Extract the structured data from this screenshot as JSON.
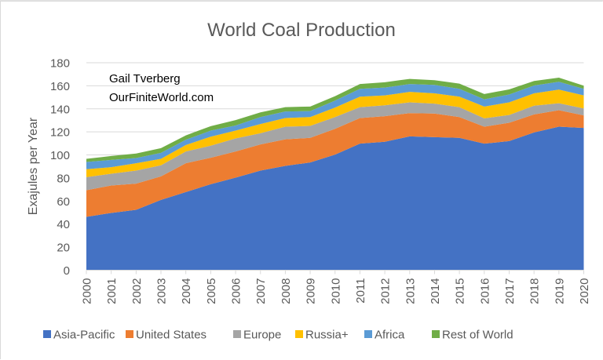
{
  "chart_data": {
    "type": "area",
    "stacked": true,
    "title": "World Coal Production",
    "xlabel": "",
    "ylabel": "Exajules per Year",
    "ylim": [
      0,
      180
    ],
    "yticks": [
      0,
      20,
      40,
      60,
      80,
      100,
      120,
      140,
      160,
      180
    ],
    "grid": true,
    "legend_position": "bottom",
    "annotations": [
      "Gail Tverberg",
      "OurFiniteWorld.com"
    ],
    "categories": [
      "2000",
      "2001",
      "2002",
      "2003",
      "2004",
      "2005",
      "2006",
      "2007",
      "2008",
      "2009",
      "2010",
      "2011",
      "2012",
      "2013",
      "2014",
      "2015",
      "2016",
      "2017",
      "2018",
      "2019",
      "2020"
    ],
    "series": [
      {
        "name": "Asia-Pacific",
        "color": "#4472C4",
        "values": [
          46.3,
          49.7,
          52.4,
          61.0,
          67.8,
          74.6,
          80.3,
          86.4,
          90.5,
          93.5,
          100.3,
          109.8,
          111.4,
          116.1,
          115.4,
          114.8,
          109.8,
          112.0,
          119.5,
          124.5,
          123.4
        ]
      },
      {
        "name": "United States",
        "color": "#ED7D31",
        "values": [
          23.1,
          23.8,
          22.7,
          20.4,
          25.0,
          23.0,
          22.7,
          22.7,
          23.1,
          21.3,
          22.4,
          22.2,
          22.2,
          20.2,
          20.5,
          18.1,
          14.7,
          15.9,
          15.7,
          14.3,
          10.9
        ]
      },
      {
        "name": "Europe",
        "color": "#A5A5A5",
        "values": [
          11.3,
          10.2,
          11.3,
          9.6,
          10.2,
          10.4,
          11.3,
          9.7,
          10.9,
          10.4,
          10.2,
          9.5,
          9.5,
          9.3,
          8.6,
          8.6,
          7.3,
          6.8,
          7.5,
          6.1,
          6.1
        ]
      },
      {
        "name": "Russia+",
        "color": "#FFC000",
        "values": [
          6.9,
          5.7,
          6.4,
          5.6,
          5.6,
          7.9,
          6.8,
          8.0,
          7.5,
          7.7,
          8.2,
          9.1,
          8.6,
          9.1,
          9.0,
          9.1,
          10.2,
          10.9,
          10.8,
          11.8,
          11.3
        ]
      },
      {
        "name": "Africa",
        "color": "#5B9BD5",
        "values": [
          6.3,
          6.3,
          4.5,
          5.2,
          4.6,
          5.2,
          4.5,
          6.1,
          5.7,
          5.2,
          6.1,
          6.8,
          6.8,
          6.8,
          7.3,
          6.8,
          6.3,
          6.8,
          6.8,
          6.8,
          5.7
        ]
      },
      {
        "name": "Rest of World",
        "color": "#70AD47",
        "values": [
          2.7,
          3.4,
          3.9,
          4.1,
          3.8,
          3.9,
          4.6,
          4.1,
          3.8,
          3.9,
          3.8,
          4.1,
          4.6,
          4.5,
          4.1,
          4.5,
          4.6,
          4.5,
          3.9,
          3.6,
          2.7
        ]
      }
    ]
  },
  "colors": {
    "gridline": "#D9D9D9",
    "text": "#595959"
  }
}
